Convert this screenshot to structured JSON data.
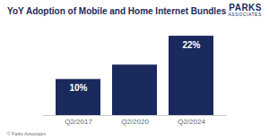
{
  "chart_data": {
    "type": "bar",
    "title": "YoY Adoption of Mobile and Home Internet Bundles",
    "logo": "PARKS ASSOCIATES",
    "source": "© Parks Associates",
    "categories": [
      "Q2/2017",
      "Q2/2020",
      "Q2/2024"
    ],
    "values": [
      10,
      14,
      22
    ],
    "value_labels": [
      "10%",
      null,
      "22%"
    ],
    "data_labels": true,
    "color": "#1b2a5c",
    "ylim": [
      0,
      24
    ],
    "tick_labels": "x",
    "grid": false
  }
}
